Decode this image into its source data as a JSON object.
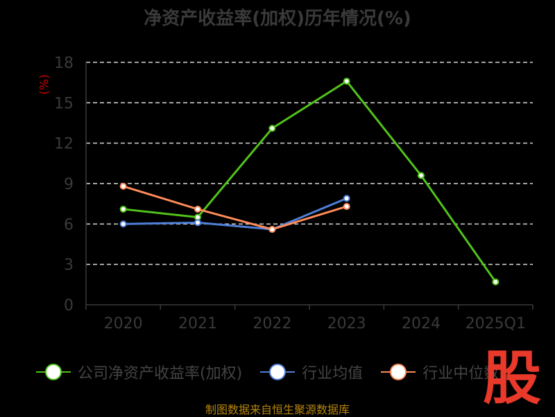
{
  "title": "净资产收益率(加权)历年情况(%)",
  "unit_label": "(%)",
  "source_text": "制图数据来自恒生聚源数据库",
  "logo_text": "股",
  "chart_data": {
    "type": "line",
    "categories": [
      "2020",
      "2021",
      "2022",
      "2023",
      "2024",
      "2025Q1"
    ],
    "ylim": [
      0,
      18
    ],
    "yticks": [
      "0",
      "3",
      "6",
      "9",
      "12",
      "15",
      "18"
    ],
    "grid": true,
    "legend_position": "bottom",
    "series": [
      {
        "name": "公司净资产收益率(加权)",
        "color": "#52c41a",
        "values": [
          7.1,
          6.5,
          13.1,
          16.6,
          9.6,
          1.7
        ]
      },
      {
        "name": "行业均值",
        "color": "#4f7fd8",
        "values": [
          6.0,
          6.1,
          5.6,
          7.9,
          null,
          null
        ]
      },
      {
        "name": "行业中位数",
        "color": "#ff8c5a",
        "values": [
          8.8,
          7.1,
          5.6,
          7.3,
          null,
          null
        ]
      }
    ]
  }
}
